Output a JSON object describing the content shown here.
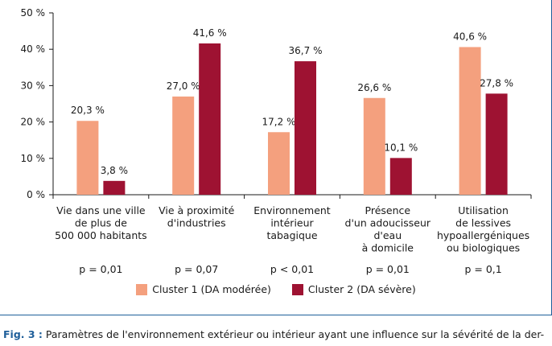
{
  "chart_data": {
    "type": "bar",
    "categories": [
      [
        "Vie dans une ville",
        "de plus de",
        "500 000 habitants"
      ],
      [
        "Vie à proximité",
        "d'industries"
      ],
      [
        "Environnement",
        "intérieur",
        "tabagique"
      ],
      [
        "Présence",
        "d'un adoucisseur",
        "d'eau",
        "à domicile"
      ],
      [
        "Utilisation",
        "de lessives",
        "hypoallergéniques",
        "ou biologiques"
      ]
    ],
    "series": [
      {
        "name": "Cluster 1 (DA modérée)",
        "color": "#f4a07e",
        "values": [
          20.3,
          27.0,
          17.2,
          26.6,
          40.6
        ],
        "labels": [
          "20,3 %",
          "27,0 %",
          "17,2 %",
          "26,6 %",
          "40,6 %"
        ]
      },
      {
        "name": "Cluster 2 (DA sévère)",
        "color": "#9e1232",
        "values": [
          3.8,
          41.6,
          36.7,
          10.1,
          27.8
        ],
        "labels": [
          "3,8 %",
          "41,6 %",
          "36,7 %",
          "10,1 %",
          "27,8 %"
        ]
      }
    ],
    "p_values": [
      "p = 0,01",
      "p = 0,07",
      "p < 0,01",
      "p = 0,01",
      "p = 0,1"
    ],
    "yticks": [
      0,
      10,
      20,
      30,
      40,
      50
    ],
    "ytick_labels": [
      "0 %",
      "10 %",
      "20 %",
      "30 %",
      "40 %",
      "50 %"
    ],
    "ylim": [
      0,
      50
    ],
    "grid": false,
    "legend_position": "bottom-center"
  },
  "caption": {
    "lead": "Fig. 3 :",
    "text": " Paramètres de l'environnement extérieur ou intérieur ayant une influence sur la sévérité de la der-"
  },
  "colors": {
    "frame": "#1f5f9a",
    "axis": "#1a1a1a"
  }
}
